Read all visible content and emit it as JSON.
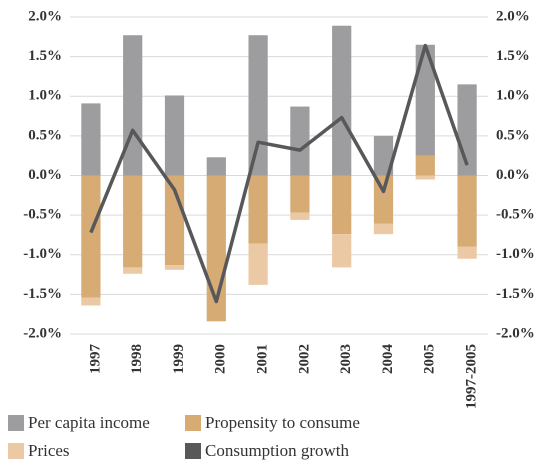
{
  "chart_data": {
    "type": "bar",
    "categories": [
      "1997",
      "1998",
      "1999",
      "2000",
      "2001",
      "2002",
      "2003",
      "2004",
      "2005",
      "1997-2005"
    ],
    "series": [
      {
        "name": "Per capita income",
        "color": "#9d9d9f",
        "values": [
          0.91,
          1.77,
          1.01,
          0.23,
          1.77,
          0.87,
          1.89,
          0.5,
          1.4,
          1.15
        ]
      },
      {
        "name": "Propensity to consume",
        "color": "#d6ab74",
        "values": [
          -1.54,
          -1.16,
          -1.13,
          -1.84,
          -0.86,
          -0.47,
          -0.74,
          -0.61,
          0.25,
          -0.9
        ]
      },
      {
        "name": "Prices",
        "color": "#eac9a4",
        "values": [
          -0.1,
          -0.08,
          -0.06,
          0,
          -0.52,
          -0.09,
          -0.42,
          -0.13,
          -0.05,
          -0.15
        ]
      },
      {
        "name": "Consumption growth",
        "color": "#58585a",
        "type": "line",
        "values": [
          -0.72,
          0.57,
          -0.18,
          -1.59,
          0.42,
          0.32,
          0.73,
          -0.2,
          1.64,
          0.13
        ]
      }
    ],
    "ylim": [
      -2,
      2
    ],
    "yticks": [
      {
        "value": -2,
        "label": "-2.0%"
      },
      {
        "value": -1.5,
        "label": "-1.5%"
      },
      {
        "value": -1,
        "label": "-1.0%"
      },
      {
        "value": -0.5,
        "label": "-0.5%"
      },
      {
        "value": 0,
        "label": "0.0%"
      },
      {
        "value": 0.5,
        "label": "0.5%"
      },
      {
        "value": 1,
        "label": "1.0%"
      },
      {
        "value": 1.5,
        "label": "1.5%"
      },
      {
        "value": 2,
        "label": "2.0%"
      }
    ],
    "y2lim": [
      -2,
      2
    ],
    "y2ticks": [
      {
        "value": -2,
        "label": "-2.0%"
      },
      {
        "value": -1.5,
        "label": "-1.5%"
      },
      {
        "value": -1,
        "label": "-1.0%"
      },
      {
        "value": -0.5,
        "label": "-0.5%"
      },
      {
        "value": 0,
        "label": "0.0%"
      },
      {
        "value": 0.5,
        "label": "0.5%"
      },
      {
        "value": 1,
        "label": "1.0%"
      },
      {
        "value": 1.5,
        "label": "1.5%"
      },
      {
        "value": 2,
        "label": "2.0%"
      }
    ],
    "grid": true
  }
}
